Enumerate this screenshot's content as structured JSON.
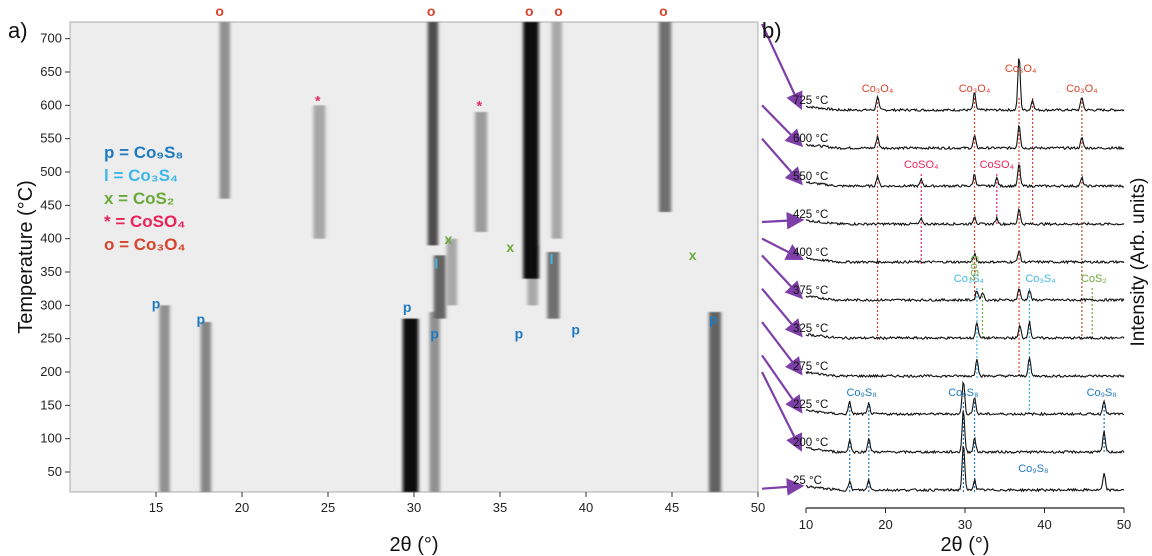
{
  "colors": {
    "p": "#1f7bc1",
    "l": "#3fb8e8",
    "x": "#6aaa3a",
    "star": "#e8245a",
    "o": "#d8432b",
    "arrow": "#7e3fa8",
    "trace": "#111111"
  },
  "chart_data": [
    {
      "type": "heatmap",
      "panel_label": "a)",
      "xlabel": "2θ (°)",
      "ylabel": "Temperature (°C)",
      "xlim": [
        10,
        50
      ],
      "ylim": [
        20,
        725
      ],
      "xticks": [
        15,
        20,
        25,
        30,
        35,
        40,
        45,
        50
      ],
      "yticks": [
        50,
        100,
        150,
        200,
        250,
        300,
        350,
        400,
        450,
        500,
        550,
        600,
        650,
        700
      ],
      "legend": [
        {
          "symbol": "p",
          "text": "p = Co₉S₈",
          "color": "#1f7bc1"
        },
        {
          "symbol": "l",
          "text": "l = Co₃S₄",
          "color": "#3fb8e8"
        },
        {
          "symbol": "x",
          "text": "x = CoS₂",
          "color": "#6aaa3a"
        },
        {
          "symbol": "*",
          "text": "* = CoSO₄",
          "color": "#e8245a"
        },
        {
          "symbol": "o",
          "text": "o = Co₃O₄",
          "color": "#d8432b"
        }
      ],
      "bands": [
        {
          "x": 15.5,
          "t0": 20,
          "t1": 300,
          "intensity": 0.4,
          "width": 0.3
        },
        {
          "x": 17.9,
          "t0": 20,
          "t1": 275,
          "intensity": 0.45,
          "width": 0.3
        },
        {
          "x": 29.8,
          "t0": 20,
          "t1": 280,
          "intensity": 1.0,
          "width": 0.45
        },
        {
          "x": 31.2,
          "t0": 20,
          "t1": 290,
          "intensity": 0.4,
          "width": 0.3
        },
        {
          "x": 47.5,
          "t0": 20,
          "t1": 290,
          "intensity": 0.6,
          "width": 0.35
        },
        {
          "x": 31.5,
          "t0": 280,
          "t1": 375,
          "intensity": 0.6,
          "width": 0.35
        },
        {
          "x": 38.1,
          "t0": 280,
          "t1": 380,
          "intensity": 0.55,
          "width": 0.35
        },
        {
          "x": 32.2,
          "t0": 300,
          "t1": 400,
          "intensity": 0.3,
          "width": 0.3
        },
        {
          "x": 36.9,
          "t0": 300,
          "t1": 390,
          "intensity": 0.3,
          "width": 0.3
        },
        {
          "x": 24.5,
          "t0": 400,
          "t1": 600,
          "intensity": 0.3,
          "width": 0.35
        },
        {
          "x": 33.9,
          "t0": 410,
          "t1": 590,
          "intensity": 0.35,
          "width": 0.35
        },
        {
          "x": 19.0,
          "t0": 460,
          "t1": 725,
          "intensity": 0.4,
          "width": 0.3
        },
        {
          "x": 31.1,
          "t0": 390,
          "t1": 725,
          "intensity": 0.7,
          "width": 0.3
        },
        {
          "x": 36.8,
          "t0": 340,
          "t1": 725,
          "intensity": 1.0,
          "width": 0.45
        },
        {
          "x": 38.3,
          "t0": 400,
          "t1": 725,
          "intensity": 0.3,
          "width": 0.3
        },
        {
          "x": 44.6,
          "t0": 440,
          "t1": 725,
          "intensity": 0.55,
          "width": 0.35
        }
      ],
      "markers": [
        {
          "label": "o",
          "x": 18.7,
          "y": 740,
          "series": "o"
        },
        {
          "label": "o",
          "x": 31.0,
          "y": 740,
          "series": "o"
        },
        {
          "label": "o",
          "x": 36.7,
          "y": 740,
          "series": "o"
        },
        {
          "label": "o",
          "x": 38.4,
          "y": 740,
          "series": "o"
        },
        {
          "label": "o",
          "x": 44.5,
          "y": 740,
          "series": "o"
        },
        {
          "label": "*",
          "x": 24.4,
          "y": 600,
          "series": "star"
        },
        {
          "label": "*",
          "x": 33.8,
          "y": 592,
          "series": "star"
        },
        {
          "label": "x",
          "x": 32.0,
          "y": 392,
          "series": "x"
        },
        {
          "label": "x",
          "x": 35.6,
          "y": 380,
          "series": "x"
        },
        {
          "label": "x",
          "x": 46.2,
          "y": 368,
          "series": "x"
        },
        {
          "label": "l",
          "x": 31.3,
          "y": 355,
          "series": "l"
        },
        {
          "label": "l",
          "x": 38.0,
          "y": 362,
          "series": "l"
        },
        {
          "label": "p",
          "x": 15.0,
          "y": 295,
          "series": "p"
        },
        {
          "label": "p",
          "x": 17.6,
          "y": 272,
          "series": "p"
        },
        {
          "label": "p",
          "x": 29.6,
          "y": 290,
          "series": "p"
        },
        {
          "label": "p",
          "x": 31.2,
          "y": 250,
          "series": "p"
        },
        {
          "label": "p",
          "x": 36.1,
          "y": 250,
          "series": "p"
        },
        {
          "label": "p",
          "x": 39.4,
          "y": 256,
          "series": "p"
        },
        {
          "label": "p",
          "x": 47.4,
          "y": 272,
          "series": "p"
        }
      ]
    },
    {
      "type": "line",
      "panel_label": "b)",
      "xlabel": "2θ (°)",
      "ylabel": "Intensity (Arb. units)",
      "xlim": [
        10,
        50
      ],
      "xticks": [
        10,
        20,
        30,
        40,
        50
      ],
      "series": [
        {
          "name": "725 °C",
          "peaks": [
            [
              19.0,
              14
            ],
            [
              31.2,
              17
            ],
            [
              36.8,
              54
            ],
            [
              38.5,
              10
            ],
            [
              44.7,
              13
            ]
          ]
        },
        {
          "name": "600 °C",
          "peaks": [
            [
              19.0,
              12
            ],
            [
              31.2,
              12
            ],
            [
              36.8,
              24
            ],
            [
              44.7,
              10
            ]
          ]
        },
        {
          "name": "550 °C",
          "peaks": [
            [
              19.0,
              10
            ],
            [
              24.5,
              6
            ],
            [
              31.2,
              12
            ],
            [
              34.0,
              8
            ],
            [
              36.8,
              22
            ],
            [
              44.7,
              8
            ]
          ]
        },
        {
          "name": "425 °C",
          "peaks": [
            [
              24.5,
              5
            ],
            [
              31.2,
              8
            ],
            [
              34.0,
              6
            ],
            [
              36.8,
              16
            ]
          ]
        },
        {
          "name": "400 °C",
          "peaks": [
            [
              31.2,
              8
            ],
            [
              36.8,
              12
            ]
          ]
        },
        {
          "name": "375 °C",
          "peaks": [
            [
              31.5,
              10
            ],
            [
              32.2,
              8
            ],
            [
              36.8,
              12
            ],
            [
              38.1,
              10
            ]
          ]
        },
        {
          "name": "325 °C",
          "peaks": [
            [
              31.5,
              16
            ],
            [
              36.9,
              12
            ],
            [
              38.1,
              16
            ]
          ]
        },
        {
          "name": "275 °C",
          "peaks": [
            [
              31.5,
              18
            ],
            [
              38.1,
              18
            ]
          ]
        },
        {
          "name": "225 °C",
          "peaks": [
            [
              15.5,
              12
            ],
            [
              17.9,
              10
            ],
            [
              29.8,
              34
            ],
            [
              31.2,
              18
            ],
            [
              47.5,
              14
            ]
          ]
        },
        {
          "name": "200 °C",
          "peaks": [
            [
              15.5,
              12
            ],
            [
              17.9,
              14
            ],
            [
              29.8,
              42
            ],
            [
              31.2,
              14
            ],
            [
              47.5,
              20
            ]
          ]
        },
        {
          "name": "25 °C",
          "peaks": [
            [
              15.5,
              8
            ],
            [
              17.9,
              10
            ],
            [
              29.8,
              46
            ],
            [
              31.2,
              10
            ],
            [
              47.5,
              16
            ]
          ]
        }
      ],
      "peak_lines": [
        {
          "x": 19.0,
          "from": "725 °C",
          "to": "325 °C",
          "series": "o"
        },
        {
          "x": 31.2,
          "from": "725 °C",
          "to": "375 °C",
          "series": "o"
        },
        {
          "x": 36.8,
          "from": "725 °C",
          "to": "275 °C",
          "series": "o"
        },
        {
          "x": 38.5,
          "from": "725 °C",
          "to": "425 °C",
          "series": "o"
        },
        {
          "x": 44.7,
          "from": "725 °C",
          "to": "325 °C",
          "series": "o"
        },
        {
          "x": 24.5,
          "from": "550 °C",
          "to": "400 °C",
          "series": "star"
        },
        {
          "x": 34.0,
          "from": "550 °C",
          "to": "425 °C",
          "series": "star"
        },
        {
          "x": 32.2,
          "from": "375 °C",
          "to": "325 °C",
          "series": "x"
        },
        {
          "x": 46.0,
          "from": "375 °C",
          "to": "325 °C",
          "series": "x"
        },
        {
          "x": 31.5,
          "from": "375 °C",
          "to": "275 °C",
          "series": "l"
        },
        {
          "x": 38.1,
          "from": "375 °C",
          "to": "225 °C",
          "series": "l"
        },
        {
          "x": 15.5,
          "from": "225 °C",
          "to": "25 °C",
          "series": "p"
        },
        {
          "x": 17.9,
          "from": "225 °C",
          "to": "25 °C",
          "series": "p"
        },
        {
          "x": 29.8,
          "from": "225 °C",
          "to": "25 °C",
          "series": "p"
        },
        {
          "x": 31.2,
          "from": "225 °C",
          "to": "25 °C",
          "series": "p"
        },
        {
          "x": 47.5,
          "from": "225 °C",
          "to": "200 °C",
          "series": "p"
        }
      ],
      "annotations": [
        {
          "label": "Co₃O₄",
          "x": 19.0,
          "series": "o",
          "row": "725 °C",
          "offset": 1
        },
        {
          "label": "Co₃O₄",
          "x": 31.2,
          "series": "o",
          "row": "725 °C",
          "offset": 1
        },
        {
          "label": "Co₃O₄",
          "x": 37.0,
          "series": "o",
          "row": "725 °C",
          "offset": 2
        },
        {
          "label": "Co₃O₄",
          "x": 44.7,
          "series": "o",
          "row": "725 °C",
          "offset": 1
        },
        {
          "label": "CoSO₄",
          "x": 24.5,
          "series": "star",
          "row": "550 °C",
          "offset": 1
        },
        {
          "label": "CoSO₄",
          "x": 34.0,
          "series": "star",
          "row": "550 °C",
          "offset": 1
        },
        {
          "label": "Co₃S₄",
          "x": 30.5,
          "series": "l",
          "row": "375 °C",
          "offset": 1
        },
        {
          "label": "CoS₂",
          "x": 32.5,
          "series": "x",
          "row": "375 °C",
          "offset": 1,
          "rotated": true
        },
        {
          "label": "Co₃S₄",
          "x": 39.5,
          "series": "l",
          "row": "375 °C",
          "offset": 1
        },
        {
          "label": "CoS₂",
          "x": 46.2,
          "series": "x",
          "row": "375 °C",
          "offset": 1
        },
        {
          "label": "Co₉S₈",
          "x": 17.0,
          "series": "p",
          "row": "225 °C",
          "offset": 1
        },
        {
          "label": "Co₉S₈",
          "x": 29.8,
          "series": "p",
          "row": "225 °C",
          "offset": 1
        },
        {
          "label": "Co₉S₈",
          "x": 47.2,
          "series": "p",
          "row": "225 °C",
          "offset": 1
        },
        {
          "label": "Co₉S₈",
          "x": 38.6,
          "series": "p",
          "row": "25 °C",
          "offset": 1
        }
      ]
    }
  ]
}
